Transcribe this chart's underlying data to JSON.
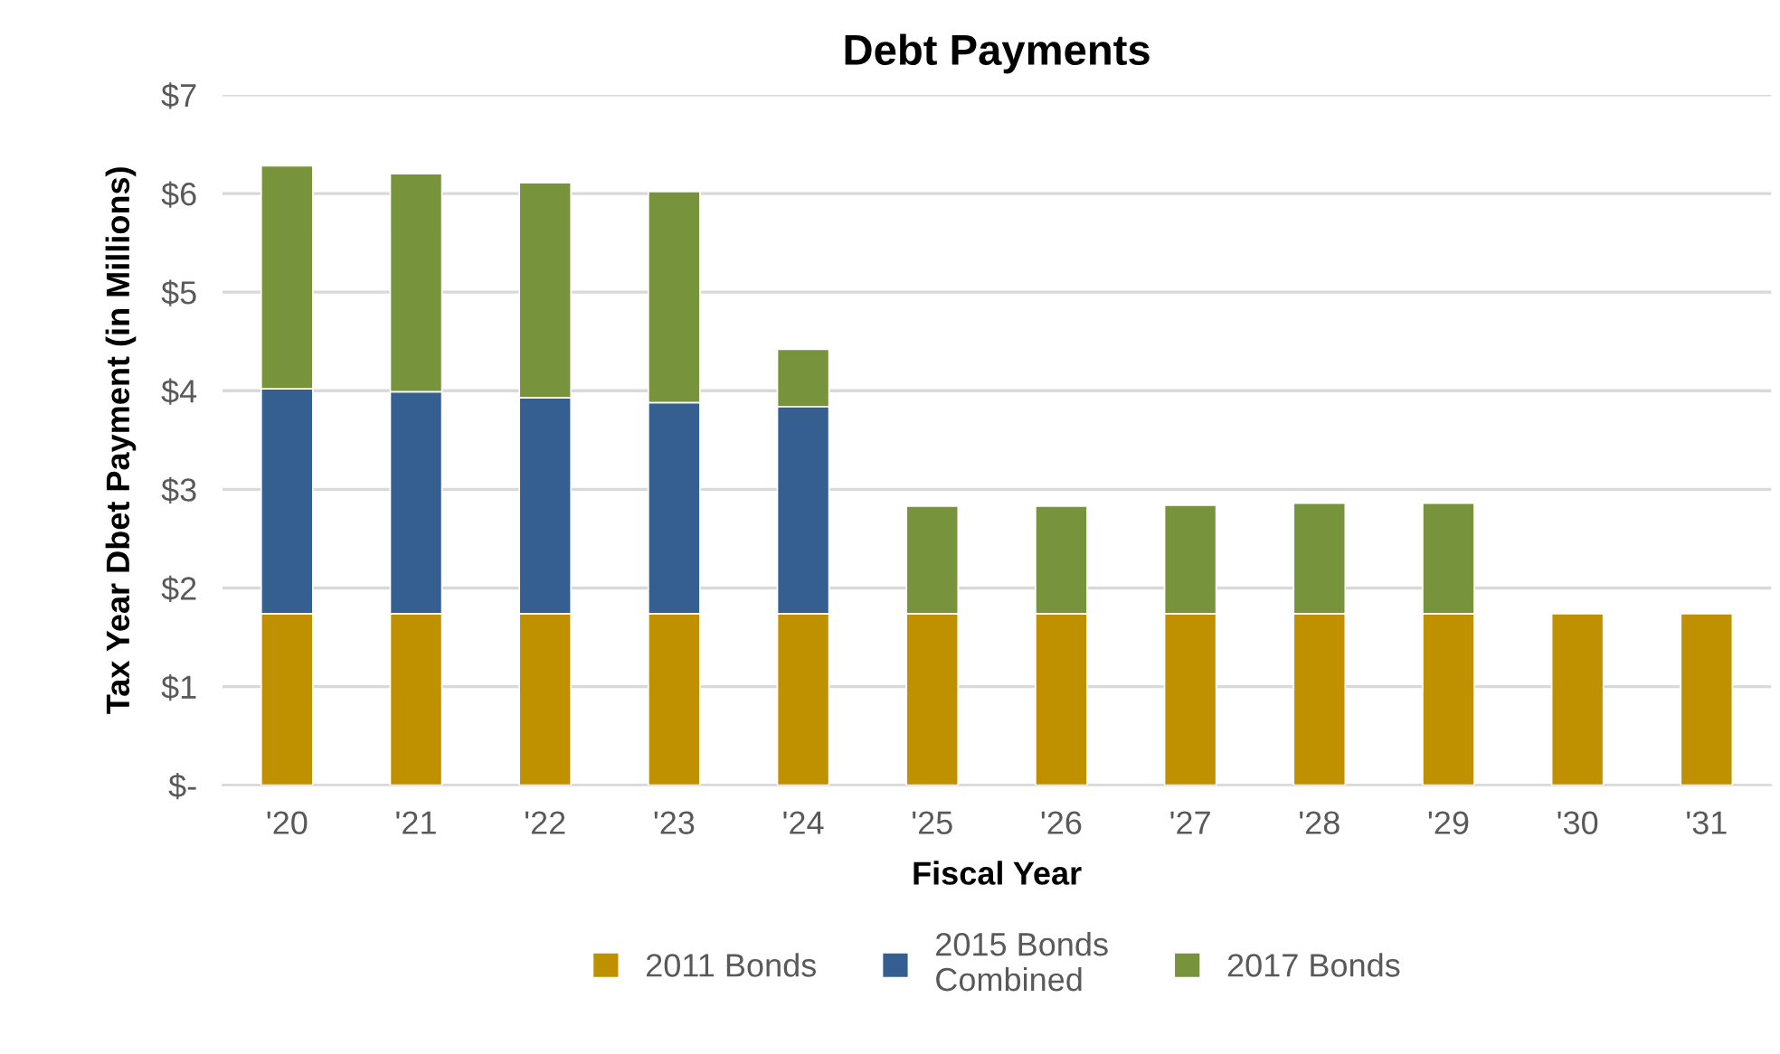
{
  "chart_data": {
    "type": "bar",
    "title": "Debt Payments",
    "xlabel": "Fiscal Year",
    "ylabel": "Tax Year Dbet Payment (in Millions)",
    "categories": [
      "'20",
      "'21",
      "'22",
      "'23",
      "'24",
      "'25",
      "'26",
      "'27",
      "'28",
      "'29",
      "'30",
      "'31"
    ],
    "stacked": true,
    "series": [
      {
        "name": "2011 Bonds",
        "color": "#bf9000",
        "values": [
          1.74,
          1.74,
          1.74,
          1.74,
          1.74,
          1.74,
          1.74,
          1.74,
          1.74,
          1.74,
          1.74,
          1.74
        ]
      },
      {
        "name": "2015 Bonds\nCombined",
        "color": "#355f91",
        "values": [
          2.28,
          2.25,
          2.19,
          2.14,
          2.1,
          null,
          null,
          null,
          null,
          null,
          null,
          null
        ]
      },
      {
        "name": "2017 Bonds",
        "color": "#77933c",
        "values": [
          2.26,
          2.21,
          2.18,
          2.14,
          0.58,
          1.09,
          1.09,
          1.1,
          1.12,
          1.12,
          null,
          null
        ]
      }
    ],
    "ylim": [
      0,
      7
    ],
    "yticks": [
      {
        "value": 0,
        "label": "$-"
      },
      {
        "value": 1,
        "label": "$1"
      },
      {
        "value": 2,
        "label": "$2"
      },
      {
        "value": 3,
        "label": "$3"
      },
      {
        "value": 4,
        "label": "$4"
      },
      {
        "value": 5,
        "label": "$5"
      },
      {
        "value": 6,
        "label": "$6"
      },
      {
        "value": 7,
        "label": "$7"
      }
    ],
    "grid": "y",
    "legend": "bottom"
  }
}
